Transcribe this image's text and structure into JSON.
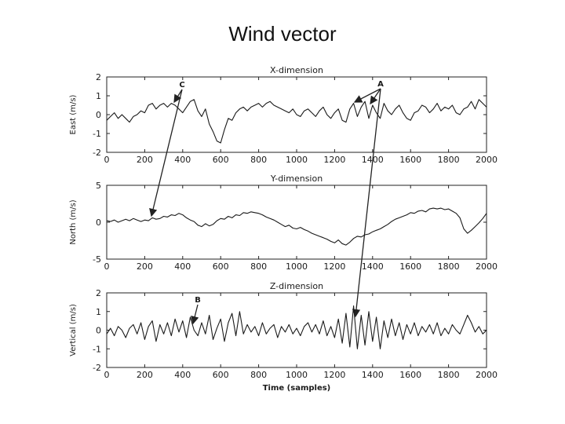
{
  "slide": {
    "title": "Wind vector"
  },
  "colors": {
    "line": "#1a1a1a",
    "axis": "#222222",
    "annotation": "#222222"
  },
  "chart_data": [
    {
      "type": "line",
      "title": "X-dimension",
      "xlabel": "",
      "ylabel": "East (m/s)",
      "xlim": [
        0,
        2000
      ],
      "ylim": [
        -2,
        2
      ],
      "xticks": [
        0,
        200,
        400,
        600,
        800,
        1000,
        1200,
        1400,
        1600,
        1800,
        2000
      ],
      "yticks": [
        -2,
        -1,
        0,
        1,
        2
      ],
      "grid": false,
      "series": [
        {
          "x": [
            0,
            20,
            40,
            60,
            80,
            100,
            120,
            140,
            160,
            180,
            200,
            220,
            240,
            260,
            280,
            300,
            320,
            340,
            360,
            380,
            400,
            420,
            440,
            460,
            480,
            500,
            520,
            540,
            560,
            580,
            600,
            620,
            640,
            660,
            680,
            700,
            720,
            740,
            760,
            780,
            800,
            820,
            840,
            860,
            880,
            900,
            920,
            940,
            960,
            980,
            1000,
            1020,
            1040,
            1060,
            1080,
            1100,
            1120,
            1140,
            1160,
            1180,
            1200,
            1220,
            1240,
            1260,
            1280,
            1300,
            1320,
            1340,
            1360,
            1380,
            1400,
            1420,
            1440,
            1460,
            1480,
            1500,
            1520,
            1540,
            1560,
            1580,
            1600,
            1620,
            1640,
            1660,
            1680,
            1700,
            1720,
            1740,
            1760,
            1780,
            1800,
            1820,
            1840,
            1860,
            1880,
            1900,
            1920,
            1940,
            1960,
            1980,
            2000
          ],
          "values": [
            -0.3,
            -0.1,
            0.1,
            -0.2,
            0.0,
            -0.2,
            -0.4,
            -0.1,
            0.0,
            0.2,
            0.1,
            0.5,
            0.6,
            0.3,
            0.5,
            0.6,
            0.4,
            0.6,
            0.5,
            0.3,
            0.1,
            0.4,
            0.7,
            0.8,
            0.2,
            -0.1,
            0.3,
            -0.5,
            -0.9,
            -1.4,
            -1.5,
            -0.8,
            -0.2,
            -0.3,
            0.1,
            0.3,
            0.4,
            0.2,
            0.4,
            0.5,
            0.6,
            0.4,
            0.6,
            0.7,
            0.5,
            0.4,
            0.3,
            0.2,
            0.1,
            0.3,
            0.0,
            -0.1,
            0.2,
            0.3,
            0.1,
            -0.1,
            0.2,
            0.4,
            0.0,
            -0.2,
            0.1,
            0.3,
            -0.3,
            -0.4,
            0.3,
            0.6,
            -0.1,
            0.4,
            0.7,
            -0.2,
            0.5,
            0.1,
            -0.2,
            0.6,
            0.2,
            0.0,
            0.3,
            0.5,
            0.1,
            -0.2,
            -0.3,
            0.1,
            0.2,
            0.5,
            0.4,
            0.1,
            0.3,
            0.6,
            0.2,
            0.4,
            0.3,
            0.5,
            0.1,
            0.0,
            0.3,
            0.4,
            0.7,
            0.3,
            0.8,
            0.6,
            0.4
          ]
        }
      ],
      "annotations": [
        {
          "label": "C",
          "x": 380,
          "y": 1.3
        },
        {
          "label": "A",
          "x": 1420,
          "y": 1.3
        }
      ]
    },
    {
      "type": "line",
      "title": "Y-dimension",
      "xlabel": "",
      "ylabel": "North (m/s)",
      "xlim": [
        0,
        2000
      ],
      "ylim": [
        -5,
        5
      ],
      "xticks": [
        0,
        200,
        400,
        600,
        800,
        1000,
        1200,
        1400,
        1600,
        1800,
        2000
      ],
      "yticks": [
        -5,
        0,
        5
      ],
      "grid": false,
      "series": [
        {
          "x": [
            0,
            20,
            40,
            60,
            80,
            100,
            120,
            140,
            160,
            180,
            200,
            220,
            240,
            260,
            280,
            300,
            320,
            340,
            360,
            380,
            400,
            420,
            440,
            460,
            480,
            500,
            520,
            540,
            560,
            580,
            600,
            620,
            640,
            660,
            680,
            700,
            720,
            740,
            760,
            780,
            800,
            820,
            840,
            860,
            880,
            900,
            920,
            940,
            960,
            980,
            1000,
            1020,
            1040,
            1060,
            1080,
            1100,
            1120,
            1140,
            1160,
            1180,
            1200,
            1220,
            1240,
            1260,
            1280,
            1300,
            1320,
            1340,
            1360,
            1380,
            1400,
            1420,
            1440,
            1460,
            1480,
            1500,
            1520,
            1540,
            1560,
            1580,
            1600,
            1620,
            1640,
            1660,
            1680,
            1700,
            1720,
            1740,
            1760,
            1780,
            1800,
            1820,
            1840,
            1860,
            1880,
            1900,
            1920,
            1940,
            1960,
            1980,
            2000
          ],
          "values": [
            0.2,
            0.1,
            0.3,
            0.0,
            0.2,
            0.4,
            0.2,
            0.5,
            0.3,
            0.1,
            0.3,
            0.2,
            0.6,
            0.4,
            0.5,
            0.8,
            0.7,
            1.0,
            0.9,
            1.2,
            1.0,
            0.6,
            0.3,
            0.1,
            -0.4,
            -0.6,
            -0.2,
            -0.5,
            -0.3,
            0.2,
            0.5,
            0.4,
            0.8,
            0.6,
            1.0,
            0.9,
            1.3,
            1.2,
            1.4,
            1.3,
            1.2,
            1.0,
            0.7,
            0.5,
            0.3,
            0.0,
            -0.3,
            -0.6,
            -0.4,
            -0.8,
            -0.9,
            -0.7,
            -1.0,
            -1.2,
            -1.5,
            -1.7,
            -1.9,
            -2.1,
            -2.3,
            -2.6,
            -2.8,
            -2.4,
            -2.9,
            -3.1,
            -2.7,
            -2.2,
            -1.9,
            -2.0,
            -1.7,
            -1.6,
            -1.3,
            -1.1,
            -0.9,
            -0.6,
            -0.3,
            0.1,
            0.4,
            0.6,
            0.8,
            1.0,
            1.3,
            1.2,
            1.5,
            1.6,
            1.4,
            1.8,
            1.9,
            1.8,
            1.9,
            1.7,
            1.8,
            1.5,
            1.2,
            0.6,
            -0.9,
            -1.5,
            -1.1,
            -0.6,
            -0.1,
            0.5,
            1.2
          ]
        }
      ],
      "annotations": []
    },
    {
      "type": "line",
      "title": "Z-dimension",
      "xlabel": "Time (samples)",
      "ylabel": "Vertical (m/s)",
      "xlim": [
        0,
        2000
      ],
      "ylim": [
        -2,
        2
      ],
      "xticks": [
        0,
        200,
        400,
        600,
        800,
        1000,
        1200,
        1400,
        1600,
        1800,
        2000
      ],
      "yticks": [
        -2,
        -1,
        0,
        1,
        2
      ],
      "grid": false,
      "series": [
        {
          "x": [
            0,
            20,
            40,
            60,
            80,
            100,
            120,
            140,
            160,
            180,
            200,
            220,
            240,
            260,
            280,
            300,
            320,
            340,
            360,
            380,
            400,
            420,
            440,
            460,
            480,
            500,
            520,
            540,
            560,
            580,
            600,
            620,
            640,
            660,
            680,
            700,
            720,
            740,
            760,
            780,
            800,
            820,
            840,
            860,
            880,
            900,
            920,
            940,
            960,
            980,
            1000,
            1020,
            1040,
            1060,
            1080,
            1100,
            1120,
            1140,
            1160,
            1180,
            1200,
            1220,
            1240,
            1260,
            1280,
            1300,
            1320,
            1340,
            1360,
            1380,
            1400,
            1420,
            1440,
            1460,
            1480,
            1500,
            1520,
            1540,
            1560,
            1580,
            1600,
            1620,
            1640,
            1660,
            1680,
            1700,
            1720,
            1740,
            1760,
            1780,
            1800,
            1820,
            1840,
            1860,
            1880,
            1900,
            1920,
            1940,
            1960,
            1980,
            2000
          ],
          "values": [
            -0.2,
            0.1,
            -0.3,
            0.2,
            0.0,
            -0.4,
            0.1,
            0.3,
            -0.2,
            0.4,
            -0.5,
            0.2,
            0.5,
            -0.6,
            0.3,
            -0.2,
            0.4,
            -0.3,
            0.6,
            -0.1,
            0.5,
            -0.4,
            0.7,
            0.0,
            -0.3,
            0.4,
            -0.2,
            0.8,
            -0.5,
            0.1,
            0.6,
            -0.6,
            0.4,
            0.9,
            -0.3,
            1.0,
            -0.2,
            0.3,
            -0.1,
            0.2,
            -0.3,
            0.4,
            -0.2,
            0.1,
            0.3,
            -0.4,
            0.2,
            -0.1,
            0.3,
            -0.2,
            0.1,
            -0.3,
            0.2,
            0.4,
            -0.1,
            0.3,
            -0.2,
            0.5,
            -0.3,
            0.2,
            -0.4,
            0.6,
            -0.7,
            0.9,
            -0.9,
            1.3,
            -1.0,
            0.8,
            -0.8,
            1.0,
            -0.6,
            0.7,
            -1.0,
            0.5,
            -0.4,
            0.6,
            -0.3,
            0.4,
            -0.5,
            0.3,
            -0.2,
            0.4,
            -0.3,
            0.2,
            -0.1,
            0.3,
            -0.2,
            0.4,
            -0.3,
            0.1,
            -0.2,
            0.3,
            0.0,
            -0.2,
            0.3,
            0.8,
            0.4,
            -0.1,
            0.2,
            -0.2,
            0.0
          ]
        }
      ],
      "annotations": [
        {
          "label": "B",
          "x": 460,
          "y": 0.9
        }
      ]
    }
  ]
}
